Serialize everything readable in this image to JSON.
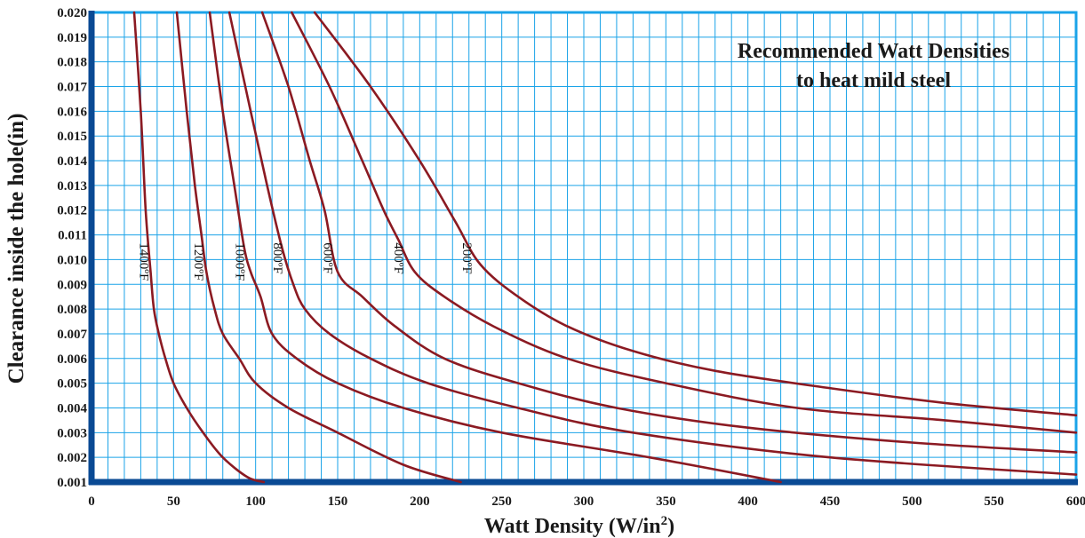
{
  "chart_data": {
    "type": "line",
    "title_lines": [
      "Recommended Watt Densities",
      "to heat mild steel"
    ],
    "xlabel_main": "Watt Density (W/in",
    "xlabel_sup": "2",
    "xlabel_end": ")",
    "ylabel": "Clearance inside the hole(in)",
    "xlim": [
      0,
      600
    ],
    "ylim": [
      0.001,
      0.02
    ],
    "x_ticks": [
      "0",
      "50",
      "100",
      "150",
      "200",
      "250",
      "300",
      "350",
      "400",
      "450",
      "500",
      "550",
      "600"
    ],
    "y_ticks": [
      "0.001",
      "0.002",
      "0.003",
      "0.004",
      "0.005",
      "0.006",
      "0.007",
      "0.008",
      "0.009",
      "0.010",
      "0.011",
      "0.012",
      "0.013",
      "0.014",
      "0.015",
      "0.016",
      "0.017",
      "0.018",
      "0.019",
      "0.020"
    ],
    "grid": true,
    "colors": {
      "grid": "#1aa3e8",
      "axis": "#0a4a94",
      "curve": "#8b1a22"
    },
    "series": [
      {
        "name": "1400ºF",
        "x": [
          26,
          30,
          33,
          36,
          38,
          41,
          45,
          50,
          58,
          68,
          80,
          95,
          105
        ],
        "y": [
          0.02,
          0.016,
          0.012,
          0.0095,
          0.008,
          0.007,
          0.006,
          0.005,
          0.004,
          0.003,
          0.002,
          0.0012,
          0.001
        ]
      },
      {
        "name": "1200ºF",
        "x": [
          52,
          58,
          63,
          67,
          70,
          75,
          80,
          90,
          100,
          120,
          150,
          190,
          225
        ],
        "y": [
          0.02,
          0.016,
          0.013,
          0.011,
          0.0095,
          0.008,
          0.007,
          0.006,
          0.005,
          0.004,
          0.003,
          0.0017,
          0.001
        ]
      },
      {
        "name": "1000ºF",
        "x": [
          72,
          80,
          87,
          93,
          97,
          103,
          110,
          125,
          150,
          190,
          250,
          340,
          420
        ],
        "y": [
          0.02,
          0.016,
          0.013,
          0.0105,
          0.0095,
          0.0085,
          0.007,
          0.006,
          0.005,
          0.004,
          0.003,
          0.002,
          0.001
        ]
      },
      {
        "name": "800ºF",
        "x": [
          84,
          97,
          107,
          116,
          123,
          130,
          145,
          170,
          205,
          260,
          330,
          450,
          600
        ],
        "y": [
          0.02,
          0.016,
          0.013,
          0.0105,
          0.009,
          0.008,
          0.007,
          0.006,
          0.005,
          0.004,
          0.003,
          0.002,
          0.0013
        ]
      },
      {
        "name": "600ºF",
        "x": [
          104,
          120,
          133,
          142,
          150,
          165,
          185,
          215,
          260,
          320,
          400,
          500,
          600
        ],
        "y": [
          0.02,
          0.017,
          0.014,
          0.012,
          0.0095,
          0.0085,
          0.0073,
          0.006,
          0.005,
          0.004,
          0.0032,
          0.0026,
          0.0022
        ]
      },
      {
        "name": "400ºF",
        "x": [
          122,
          145,
          165,
          178,
          187,
          197,
          215,
          245,
          290,
          350,
          430,
          520,
          600
        ],
        "y": [
          0.02,
          0.017,
          0.014,
          0.012,
          0.0108,
          0.0095,
          0.0085,
          0.0073,
          0.006,
          0.005,
          0.004,
          0.0035,
          0.003
        ]
      },
      {
        "name": "200ºF",
        "x": [
          136,
          170,
          200,
          222,
          237,
          260,
          290,
          330,
          380,
          450,
          520,
          600
        ],
        "y": [
          0.02,
          0.017,
          0.014,
          0.0115,
          0.0098,
          0.0085,
          0.0073,
          0.0063,
          0.0055,
          0.0048,
          0.0042,
          0.0037
        ]
      }
    ]
  }
}
